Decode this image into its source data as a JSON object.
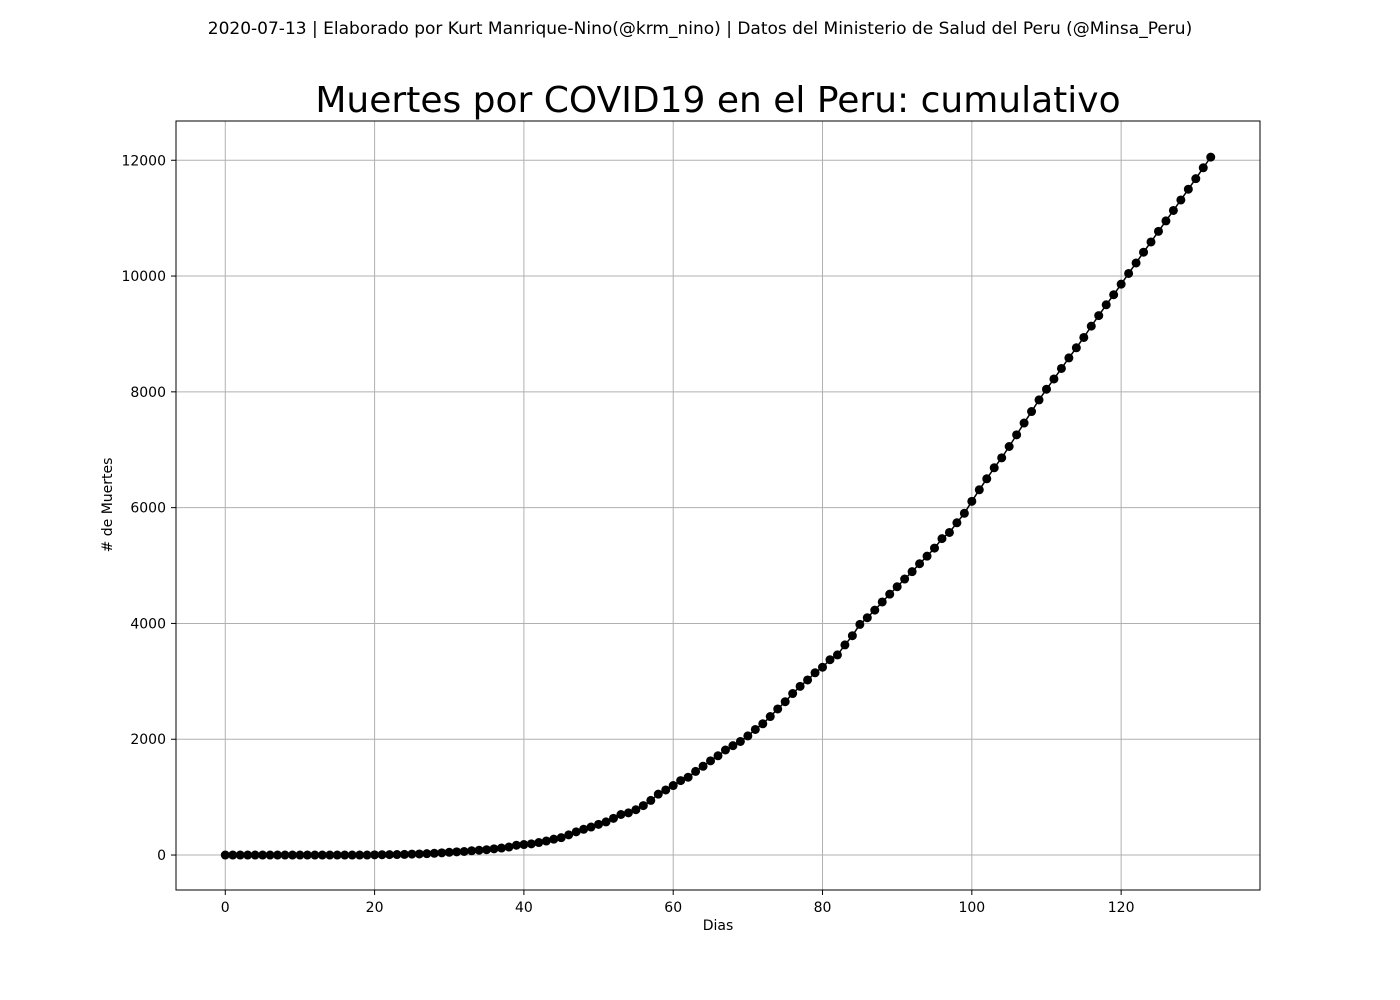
{
  "suptitle": "2020-07-13 | Elaborado por Kurt Manrique-Nino(@krm_nino) | Datos del Ministerio de Salud del Peru (@Minsa_Peru)",
  "chart_data": {
    "type": "scatter",
    "title": "Muertes por COVID19 en el Peru: cumulativo",
    "xlabel": "Dias",
    "ylabel": "# de Muertes",
    "xlim": [
      -6.6,
      138.6
    ],
    "ylim": [
      -604,
      12678
    ],
    "xticks": [
      0,
      20,
      40,
      60,
      80,
      100,
      120
    ],
    "yticks": [
      0,
      2000,
      4000,
      6000,
      8000,
      10000,
      12000
    ],
    "grid": true,
    "marker_color": "#000000",
    "line_color": "#000000",
    "series": [
      {
        "x": [
          0,
          1,
          2,
          3,
          4,
          5,
          6,
          7,
          8,
          9,
          10,
          11,
          12,
          13,
          14,
          15,
          16,
          17,
          18,
          19,
          20,
          21,
          22,
          23,
          24,
          25,
          26,
          27,
          28,
          29,
          30,
          31,
          32,
          33,
          34,
          35,
          36,
          37,
          38,
          39,
          40,
          41,
          42,
          43,
          44,
          45,
          46,
          47,
          48,
          49,
          50,
          51,
          52,
          53,
          54,
          55,
          56,
          57,
          58,
          59,
          60,
          61,
          62,
          63,
          64,
          65,
          66,
          67,
          68,
          69,
          70,
          71,
          72,
          73,
          74,
          75,
          76,
          77,
          78,
          79,
          80,
          81,
          82,
          83,
          84,
          85,
          86,
          87,
          88,
          89,
          90,
          91,
          92,
          93,
          94,
          95,
          96,
          97,
          98,
          99,
          100,
          101,
          102,
          103,
          104,
          105,
          106,
          107,
          108,
          109,
          110,
          111,
          112,
          113,
          114,
          115,
          116,
          117,
          118,
          119,
          120,
          121,
          122,
          123,
          124,
          125,
          126,
          127,
          128,
          129,
          130,
          131,
          132
        ],
        "y": [
          0,
          0,
          0,
          0,
          0,
          0,
          0,
          0,
          0,
          0,
          0,
          0,
          0,
          0,
          0,
          0,
          0,
          0,
          0,
          0,
          3,
          5,
          7,
          9,
          11,
          16,
          18,
          24,
          30,
          38,
          47,
          55,
          61,
          73,
          83,
          92,
          107,
          121,
          138,
          169,
          181,
          193,
          216,
          242,
          274,
          300,
          348,
          400,
          445,
          484,
          530,
          572,
          634,
          700,
          728,
          782,
          854,
          943,
          1051,
          1124,
          1200,
          1286,
          1344,
          1444,
          1533,
          1627,
          1714,
          1814,
          1889,
          1961,
          2057,
          2169,
          2267,
          2392,
          2523,
          2648,
          2789,
          2914,
          3024,
          3148,
          3244,
          3373,
          3456,
          3629,
          3788,
          3983,
          4099,
          4230,
          4371,
          4506,
          4634,
          4767,
          4894,
          5031,
          5162,
          5301,
          5465,
          5571,
          5738,
          5903,
          6109,
          6308,
          6498,
          6688,
          6860,
          7056,
          7257,
          7461,
          7660,
          7861,
          8045,
          8223,
          8404,
          8586,
          8761,
          8939,
          9135,
          9317,
          9504,
          9677,
          9860,
          10045,
          10226,
          10412,
          10589,
          10772,
          10952,
          11133,
          11314,
          11500,
          11682,
          11870,
          12054
        ]
      }
    ]
  }
}
